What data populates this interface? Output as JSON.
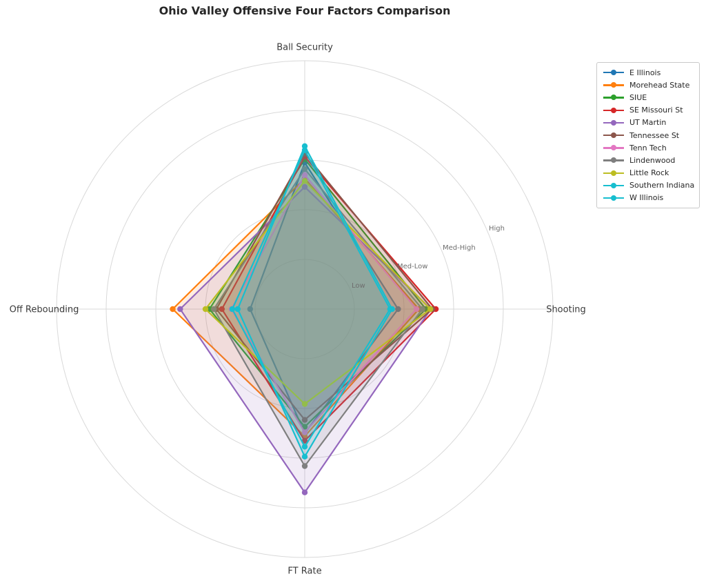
{
  "title": "Ohio Valley Offensive Four Factors Comparison",
  "chart_data": {
    "type": "radar",
    "title": "Ohio Valley Offensive Four Factors Comparison",
    "categories": [
      "Ball Security",
      "Shooting",
      "FT Rate",
      "Off Rebounding"
    ],
    "angles_deg": [
      90,
      0,
      270,
      180
    ],
    "r_max": 5,
    "grid": "on",
    "legend_position": "upper right",
    "r_ticks": {
      "values": [
        1,
        2,
        3,
        4
      ],
      "labels": [
        "Low",
        "Med-Low",
        "Med-High",
        "High"
      ]
    },
    "series": [
      {
        "name": "E Illinois",
        "color": "#1f77b4",
        "values": [
          2.95,
          1.88,
          2.5,
          1.1
        ]
      },
      {
        "name": "Morehead State",
        "color": "#ff7f0e",
        "values": [
          2.63,
          2.3,
          2.56,
          2.66
        ]
      },
      {
        "name": "SIUE",
        "color": "#2ca02c",
        "values": [
          3.02,
          2.44,
          2.37,
          1.92
        ]
      },
      {
        "name": "SE Missouri St",
        "color": "#d62728",
        "values": [
          3.07,
          2.64,
          2.65,
          1.67
        ]
      },
      {
        "name": "UT Martin",
        "color": "#9467bd",
        "values": [
          2.46,
          2.54,
          3.69,
          2.51
        ]
      },
      {
        "name": "Tennessee St",
        "color": "#8c564b",
        "values": [
          3.13,
          2.57,
          2.23,
          1.78
        ]
      },
      {
        "name": "Tenn Tech",
        "color": "#e377c2",
        "values": [
          2.7,
          2.25,
          2.48,
          1.48
        ]
      },
      {
        "name": "Lindenwood",
        "color": "#7f7f7f",
        "values": [
          2.82,
          2.37,
          3.16,
          1.83
        ]
      },
      {
        "name": "Little Rock",
        "color": "#bcbd22",
        "values": [
          2.58,
          2.53,
          1.91,
          2.0
        ]
      },
      {
        "name": "Southern Indiana",
        "color": "#17becf",
        "values": [
          3.2,
          1.72,
          2.77,
          1.46
        ]
      },
      {
        "name": "W Illinois",
        "color": "#17becf",
        "values": [
          3.28,
          1.76,
          2.97,
          1.35
        ]
      }
    ]
  },
  "style": {
    "grid_color": "#d9d9d9",
    "background": "#ffffff",
    "fill_alpha": 0.13,
    "line_width": 2.2,
    "marker_radius": 4.2
  }
}
